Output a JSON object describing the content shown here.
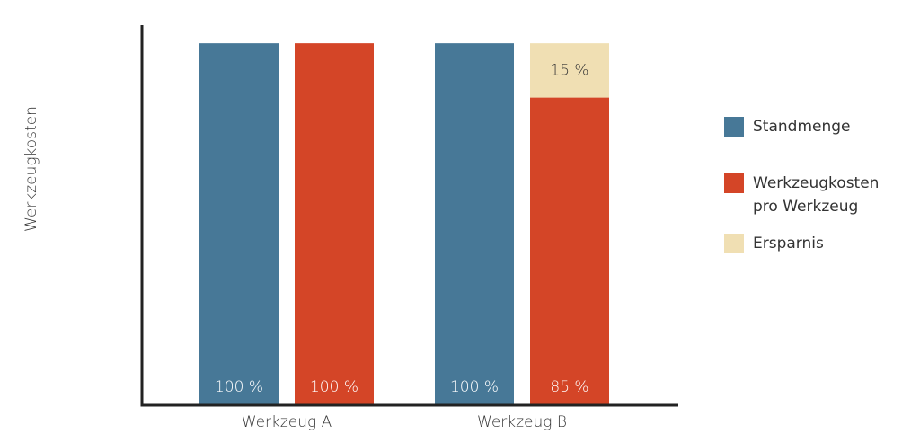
{
  "chart_data": {
    "type": "bar",
    "y_label": "Werkzeugkosten",
    "categories": [
      "Werkzeug A",
      "Werkzeug B"
    ],
    "series": [
      {
        "name": "Standmenge",
        "color": "#477897",
        "values": [
          100,
          100
        ],
        "value_labels": [
          "100 %",
          "100 %"
        ]
      },
      {
        "name": "Werkzeugkosten pro Werkzeug",
        "color": "#d44527",
        "values": [
          100,
          85
        ],
        "value_labels": [
          "100 %",
          "85 %"
        ]
      },
      {
        "name": "Ersparnis",
        "color": "#f0dfb3",
        "values": [
          null,
          15
        ],
        "value_labels": [
          null,
          "15 %"
        ]
      }
    ],
    "ylim": [
      0,
      105
    ],
    "grid": false
  }
}
